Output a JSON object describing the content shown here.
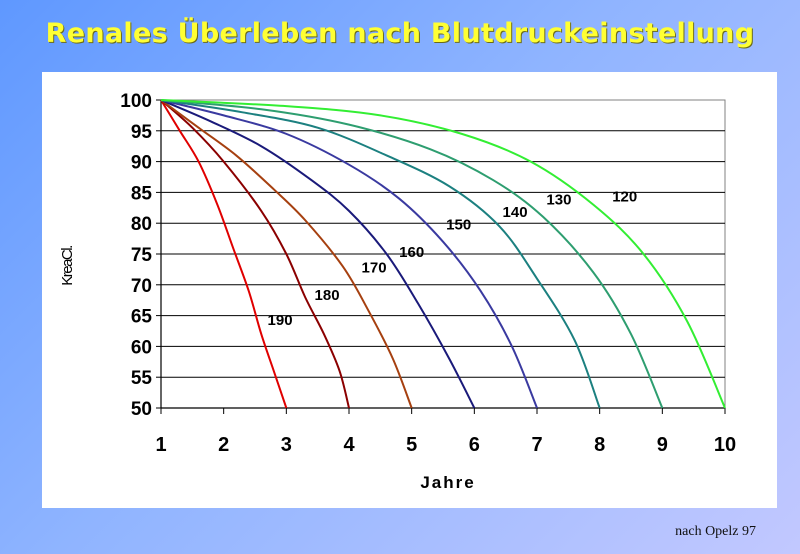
{
  "title": "Renales Überleben nach Blutdruckeinstellung",
  "source": "nach Opelz 97",
  "chart_data": {
    "type": "line",
    "title": "Renales Überleben nach Blutdruckeinstellung",
    "xlabel": "Jahre",
    "ylabel": "KreaCl.",
    "xlim": [
      1,
      10
    ],
    "ylim": [
      50,
      100
    ],
    "xticks": [
      1,
      2,
      3,
      4,
      5,
      6,
      7,
      8,
      9,
      10
    ],
    "yticks": [
      50,
      55,
      60,
      65,
      70,
      75,
      80,
      85,
      90,
      95,
      100
    ],
    "grid": "horizontal",
    "series": [
      {
        "name": "190",
        "color": "#e00000",
        "x": [
          1,
          1.3,
          1.6,
          1.9,
          2.15,
          2.4,
          2.6,
          2.8,
          3.0
        ],
        "y": [
          100,
          95,
          90,
          83,
          76,
          69,
          62,
          56,
          50
        ]
      },
      {
        "name": "180",
        "color": "#8b0000",
        "x": [
          1,
          1.5,
          2.0,
          2.6,
          3.0,
          3.3,
          3.6,
          3.85,
          4.0
        ],
        "y": [
          100,
          95.5,
          90,
          82,
          75,
          68,
          62,
          56,
          50
        ]
      },
      {
        "name": "170",
        "color": "#a64010",
        "x": [
          1,
          1.6,
          2.2,
          2.8,
          3.3,
          3.9,
          4.3,
          4.7,
          5.0
        ],
        "y": [
          100,
          95.5,
          91,
          85.5,
          80.5,
          73,
          66,
          58,
          50
        ]
      },
      {
        "name": "160",
        "color": "#1a1a7a",
        "x": [
          1,
          1.8,
          2.6,
          3.4,
          4.0,
          4.6,
          5.1,
          5.6,
          6.0
        ],
        "y": [
          100,
          96.5,
          92.5,
          87,
          82,
          75,
          67,
          58,
          50
        ]
      },
      {
        "name": "150",
        "color": "#3a3aa0",
        "x": [
          1,
          2.0,
          3.0,
          4.0,
          4.8,
          5.5,
          6.1,
          6.6,
          7.0
        ],
        "y": [
          100,
          97.5,
          94.5,
          89.5,
          84,
          77,
          69,
          60,
          50
        ]
      },
      {
        "name": "140",
        "color": "#1c8080",
        "x": [
          1,
          2.3,
          3.5,
          4.6,
          5.6,
          6.4,
          7.0,
          7.6,
          8.0
        ],
        "y": [
          100,
          98,
          95.5,
          91,
          86,
          79.5,
          71,
          61,
          50
        ]
      },
      {
        "name": "130",
        "color": "#2e9e70",
        "x": [
          1,
          2.6,
          4.0,
          5.3,
          6.3,
          7.1,
          7.9,
          8.5,
          9.0
        ],
        "y": [
          100,
          98.5,
          96,
          92,
          87,
          81,
          72,
          62,
          50
        ]
      },
      {
        "name": "120",
        "color": "#33ee33",
        "x": [
          1,
          3.0,
          4.5,
          5.8,
          6.9,
          7.9,
          8.7,
          9.4,
          10.0
        ],
        "y": [
          100,
          99,
          97.5,
          94.5,
          90,
          83,
          75,
          64,
          50
        ]
      }
    ],
    "annotations": [
      {
        "text": "190",
        "x": 2.9,
        "y": 63.5
      },
      {
        "text": "180",
        "x": 3.65,
        "y": 67.5
      },
      {
        "text": "170",
        "x": 4.4,
        "y": 72.0
      },
      {
        "text": "160",
        "x": 5.0,
        "y": 74.5
      },
      {
        "text": "150",
        "x": 5.75,
        "y": 79.0
      },
      {
        "text": "140",
        "x": 6.65,
        "y": 81.0
      },
      {
        "text": "130",
        "x": 7.35,
        "y": 83.0
      },
      {
        "text": "120",
        "x": 8.4,
        "y": 83.5
      }
    ]
  }
}
